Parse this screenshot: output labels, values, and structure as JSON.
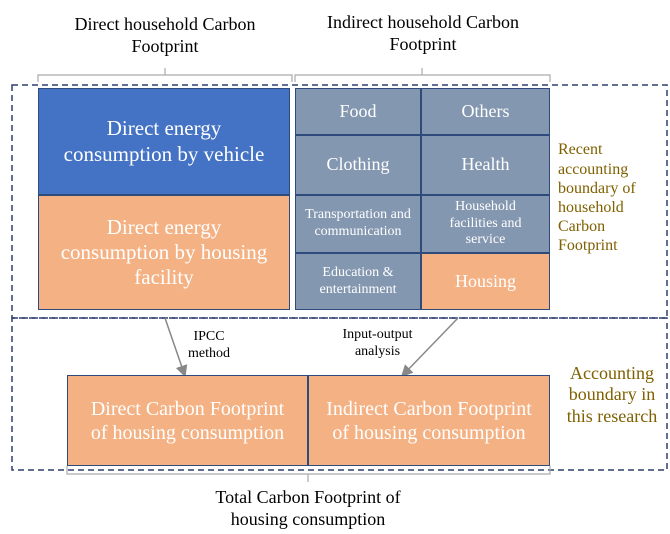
{
  "headers": {
    "direct": "Direct household Carbon Footprint",
    "indirect": "Indirect household Carbon Footprint"
  },
  "direct_boxes": [
    "Direct energy consumption by vehicle",
    "Direct energy consumption by housing facility"
  ],
  "indirect_cells": [
    "Food",
    "Others",
    "Clothing",
    "Health",
    "Transportation and communication",
    "Household facilities and service",
    "Education & entertainment",
    "Housing"
  ],
  "boundaries": {
    "recent": "Recent accounting boundary of household Carbon Footprint",
    "research": "Accounting boundary in this research"
  },
  "methods": {
    "ipcc": "IPCC method",
    "io": "Input-output analysis"
  },
  "result_boxes": [
    "Direct Carbon Footprint of housing consumption",
    "Indirect Carbon Footprint of housing consumption"
  ],
  "footer": "Total Carbon Footprint of housing consumption"
}
